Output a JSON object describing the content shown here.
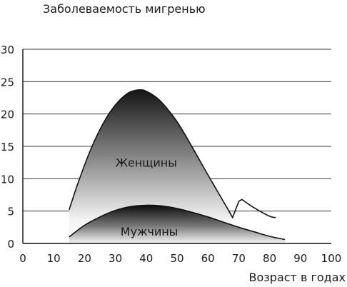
{
  "chart_data": {
    "type": "area",
    "title": "Заболеваемость мигренью",
    "xlabel": "Возраст в годах",
    "ylabel": "",
    "xlim": [
      0,
      100
    ],
    "ylim": [
      0,
      30
    ],
    "x_ticks": [
      0,
      10,
      20,
      30,
      40,
      50,
      60,
      70,
      80,
      90,
      100
    ],
    "y_ticks": [
      0,
      5,
      10,
      15,
      20,
      25,
      30
    ],
    "grid": "horizontal",
    "series": [
      {
        "name": "Женщины",
        "x": [
          15,
          18,
          22,
          26,
          30,
          34,
          37,
          39,
          40,
          42,
          45,
          50,
          55,
          60,
          65,
          68,
          70,
          71,
          75,
          80,
          82
        ],
        "y": [
          5.2,
          9.5,
          14.5,
          18.5,
          21.4,
          23.2,
          23.7,
          23.7,
          23.5,
          23.0,
          21.8,
          18.8,
          14.8,
          10.6,
          6.5,
          4.0,
          6.5,
          6.8,
          5.5,
          4.2,
          4.0
        ]
      },
      {
        "name": "Мужчины",
        "x": [
          15,
          20,
          25,
          30,
          35,
          40,
          45,
          50,
          55,
          60,
          65,
          70,
          75,
          80,
          85
        ],
        "y": [
          1.0,
          2.8,
          4.1,
          5.1,
          5.7,
          5.9,
          5.8,
          5.4,
          4.8,
          4.1,
          3.3,
          2.5,
          1.8,
          1.1,
          0.6
        ]
      }
    ],
    "labels": [
      {
        "text": "Женщины",
        "x": 40,
        "y": 12.5
      },
      {
        "text": "Мужчины",
        "x": 41,
        "y": 1.9
      }
    ]
  }
}
